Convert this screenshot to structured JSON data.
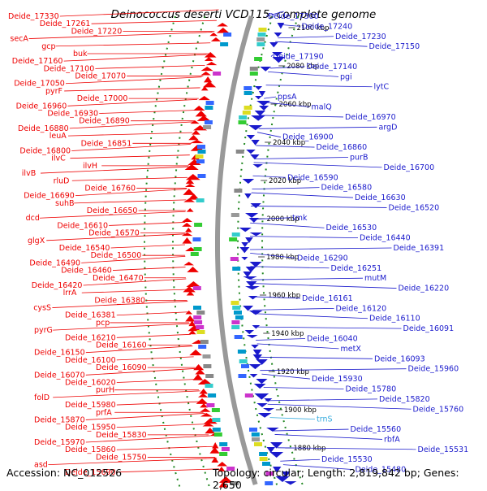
{
  "title": "Deinococcus deserti VCD115, complete genome",
  "footer": {
    "accession": "Accession: NC_012526",
    "topology": "Topology: circular; Length: 2,819,842 bp; Genes: 2,650"
  },
  "ticks": [
    "2100 kbp",
    "2080 kbp",
    "2060 kbp",
    "2040 kbp",
    "2020 kbp",
    "2000 kbp",
    "1980 kbp",
    "1960 kbp",
    "1940 kbp",
    "1920 kbp",
    "1900 kbp",
    "1880 kbp"
  ],
  "left_labels": [
    "Deide_17330",
    "Deide_17261",
    "Deide_17220",
    "secA",
    "gcp",
    "buk",
    "Deide_17160",
    "Deide_17100",
    "Deide_17070",
    "Deide_17050",
    "pyrF",
    "Deide_17000",
    "Deide_16960",
    "Deide_16930",
    "Deide_16890",
    "Deide_16880",
    "leuA",
    "Deide_16851",
    "Deide_16800",
    "ilvC",
    "ilvH",
    "ilvB",
    "rluD",
    "Deide_16760",
    "Deide_16690",
    "suhB",
    "Deide_16650",
    "dcd",
    "Deide_16610",
    "Deide_16570",
    "glgX",
    "Deide_16540",
    "Deide_16500",
    "Deide_16490",
    "Deide_16460",
    "Deide_16470",
    "Deide_16420",
    "lrrA",
    "Deide_16380",
    "cysS",
    "Deide_16381",
    "pcp",
    "pyrG",
    "Deide_16210",
    "Deide_16160",
    "Deide_16150",
    "Deide_16100",
    "Deide_16090",
    "Deide_16070",
    "Deide_16020",
    "purH",
    "folD",
    "Deide_15980",
    "prfA",
    "Deide_15870",
    "Deide_15950",
    "Deide_15830",
    "Deide_15970",
    "Deide_15860",
    "Deide_15750",
    "asd",
    "Deide_15690"
  ],
  "right_labels": [
    "Deide_17300",
    "Deide_17240",
    "Deide_17230",
    "Deide_17150",
    "Deide_17190",
    "Deide_17140",
    "pgi",
    "lytC",
    "ppsA",
    "malQ",
    "Deide_16970",
    "argD",
    "Deide_16900",
    "Deide_16860",
    "purB",
    "Deide_16700",
    "Deide_16590",
    "Deide_16580",
    "Deide_16630",
    "Deide_16520",
    "tmk",
    "Deide_16530",
    "Deide_16440",
    "Deide_16391",
    "Deide_16290",
    "Deide_16251",
    "mutM",
    "Deide_16220",
    "Deide_16161",
    "Deide_16120",
    "Deide_16110",
    "Deide_16091",
    "Deide_16040",
    "metX",
    "Deide_16093",
    "Deide_15960",
    "Deide_15930",
    "Deide_15780",
    "Deide_15820",
    "Deide_15760",
    "trnS",
    "Deide_15560",
    "rbfA",
    "Deide_15531",
    "Deide_15530",
    "Deide_15480"
  ],
  "colors": {
    "forward": "#ee0000",
    "reverse": "#1a1acc",
    "rna": "#33aadd",
    "axis": "#999999",
    "grid": "#228822"
  }
}
